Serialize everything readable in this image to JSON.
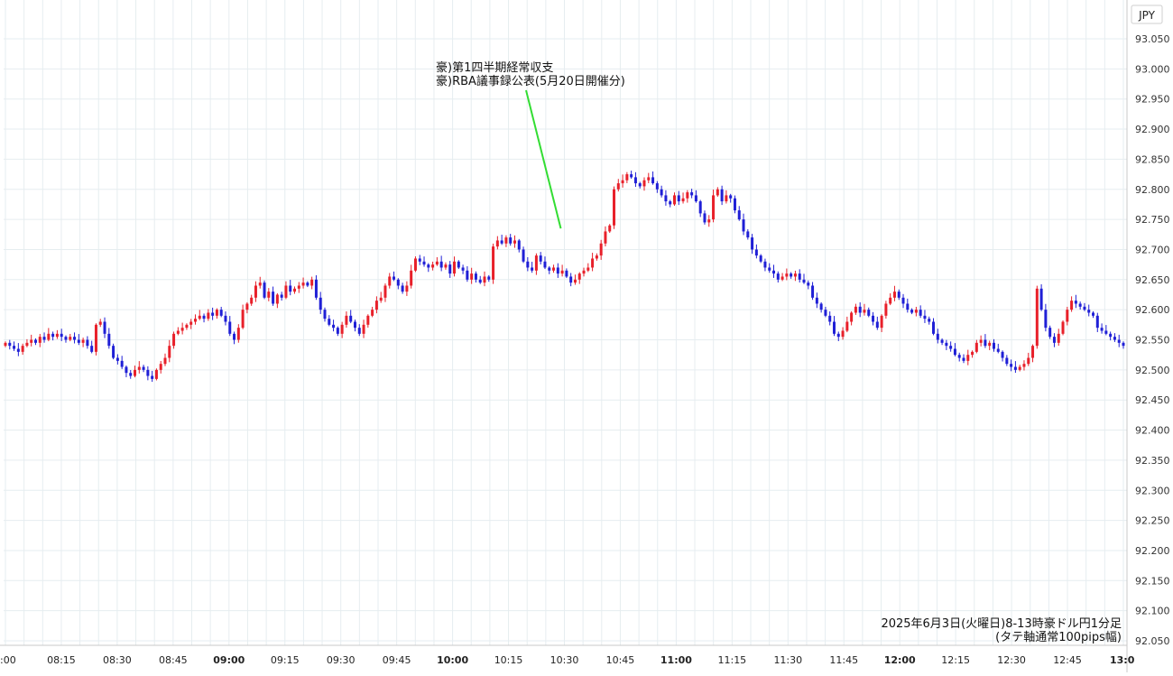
{
  "chart_data": {
    "type": "candlestick",
    "currency_label": "JPY",
    "y_ticks": [
      "93.050",
      "93.000",
      "92.950",
      "92.900",
      "92.850",
      "92.800",
      "92.750",
      "92.700",
      "92.650",
      "92.600",
      "92.550",
      "92.500",
      "92.450",
      "92.400",
      "92.350",
      "92.300",
      "92.250",
      "92.200",
      "92.150",
      "92.100",
      "92.050"
    ],
    "ylim": [
      92.05,
      93.05
    ],
    "x_ticks": [
      {
        "label": ":00",
        "min": 0,
        "bold": false
      },
      {
        "label": "08:15",
        "min": 15,
        "bold": false
      },
      {
        "label": "08:30",
        "min": 30,
        "bold": false
      },
      {
        "label": "08:45",
        "min": 45,
        "bold": false
      },
      {
        "label": "09:00",
        "min": 60,
        "bold": true
      },
      {
        "label": "09:15",
        "min": 75,
        "bold": false
      },
      {
        "label": "09:30",
        "min": 90,
        "bold": false
      },
      {
        "label": "09:45",
        "min": 105,
        "bold": false
      },
      {
        "label": "10:00",
        "min": 120,
        "bold": true
      },
      {
        "label": "10:15",
        "min": 135,
        "bold": false
      },
      {
        "label": "10:30",
        "min": 150,
        "bold": false
      },
      {
        "label": "10:45",
        "min": 165,
        "bold": false
      },
      {
        "label": "11:00",
        "min": 180,
        "bold": true
      },
      {
        "label": "11:15",
        "min": 195,
        "bold": false
      },
      {
        "label": "11:30",
        "min": 210,
        "bold": false
      },
      {
        "label": "11:45",
        "min": 225,
        "bold": false
      },
      {
        "label": "12:00",
        "min": 240,
        "bold": true
      },
      {
        "label": "12:15",
        "min": 255,
        "bold": false
      },
      {
        "label": "12:30",
        "min": 270,
        "bold": false
      },
      {
        "label": "12:45",
        "min": 285,
        "bold": false
      },
      {
        "label": "13:0",
        "min": 300,
        "bold": true
      }
    ],
    "annotation": {
      "lines": [
        "豪)第1四半期経常収支",
        "豪)RBA議事録公表(5月20日開催分)"
      ],
      "at_min": 150,
      "at_price": 92.735
    },
    "caption": [
      "2025年6月3日(火曜日)8-13時豪ドル円1分足",
      "(タテ軸通常100pips幅)"
    ],
    "up_color": "#e8202a",
    "down_color": "#1f1fd6",
    "annotation_line_color": "#33dd33",
    "closes": [
      92.545,
      92.54,
      92.535,
      92.53,
      92.54,
      92.545,
      92.55,
      92.545,
      92.555,
      92.55,
      92.56,
      92.555,
      92.56,
      92.555,
      92.55,
      92.555,
      92.55,
      92.545,
      92.55,
      92.54,
      92.53,
      92.575,
      92.58,
      92.56,
      92.54,
      92.52,
      92.515,
      92.505,
      92.495,
      92.49,
      92.5,
      92.505,
      92.5,
      92.49,
      92.485,
      92.5,
      92.51,
      92.52,
      92.54,
      92.56,
      92.565,
      92.57,
      92.575,
      92.58,
      92.585,
      92.59,
      92.585,
      92.595,
      92.59,
      92.6,
      92.59,
      92.58,
      92.56,
      92.55,
      92.57,
      92.6,
      92.61,
      92.62,
      92.64,
      92.645,
      92.62,
      92.63,
      92.61,
      92.625,
      92.62,
      92.64,
      92.63,
      92.635,
      92.64,
      92.645,
      92.64,
      92.65,
      92.62,
      92.6,
      92.585,
      92.575,
      92.57,
      92.56,
      92.575,
      92.59,
      92.58,
      92.57,
      92.56,
      92.575,
      92.59,
      92.6,
      92.615,
      92.62,
      92.64,
      92.655,
      92.65,
      92.64,
      92.63,
      92.64,
      92.665,
      92.685,
      92.68,
      92.675,
      92.67,
      92.675,
      92.68,
      92.67,
      92.675,
      92.66,
      92.68,
      92.67,
      92.665,
      92.65,
      92.66,
      92.65,
      92.645,
      92.655,
      92.65,
      92.705,
      92.715,
      92.71,
      92.72,
      92.71,
      92.715,
      92.7,
      92.68,
      92.67,
      92.665,
      92.69,
      92.68,
      92.67,
      92.665,
      92.67,
      92.66,
      92.665,
      92.655,
      92.645,
      92.65,
      92.66,
      92.665,
      92.67,
      92.685,
      92.69,
      92.71,
      92.73,
      92.74,
      92.8,
      92.81,
      92.815,
      92.825,
      92.82,
      92.81,
      92.805,
      92.815,
      92.82,
      92.81,
      92.8,
      92.79,
      92.78,
      92.775,
      92.79,
      92.78,
      92.785,
      92.795,
      92.79,
      92.78,
      92.76,
      92.745,
      92.75,
      92.79,
      92.8,
      92.78,
      92.79,
      92.785,
      92.765,
      92.75,
      92.73,
      92.72,
      92.7,
      92.69,
      92.68,
      92.67,
      92.665,
      92.66,
      92.65,
      92.655,
      92.66,
      92.655,
      92.66,
      92.65,
      92.645,
      92.64,
      92.62,
      92.61,
      92.6,
      92.59,
      92.58,
      92.56,
      92.555,
      92.565,
      92.58,
      92.595,
      92.605,
      92.595,
      92.6,
      92.59,
      92.58,
      92.57,
      92.59,
      92.61,
      92.62,
      92.63,
      92.62,
      92.61,
      92.6,
      92.595,
      92.6,
      92.59,
      92.585,
      92.58,
      92.56,
      92.55,
      92.545,
      92.54,
      92.535,
      92.525,
      92.52,
      92.515,
      92.525,
      92.53,
      92.545,
      92.55,
      92.54,
      92.545,
      92.535,
      92.53,
      92.52,
      92.51,
      92.505,
      92.5,
      92.505,
      92.51,
      92.52,
      92.54,
      92.635,
      92.6,
      92.57,
      92.555,
      92.545,
      92.56,
      92.58,
      92.6,
      92.615,
      92.61,
      92.605,
      92.6,
      92.595,
      92.59,
      92.57,
      92.565,
      92.56,
      92.555,
      92.55,
      92.545,
      92.54
    ]
  }
}
